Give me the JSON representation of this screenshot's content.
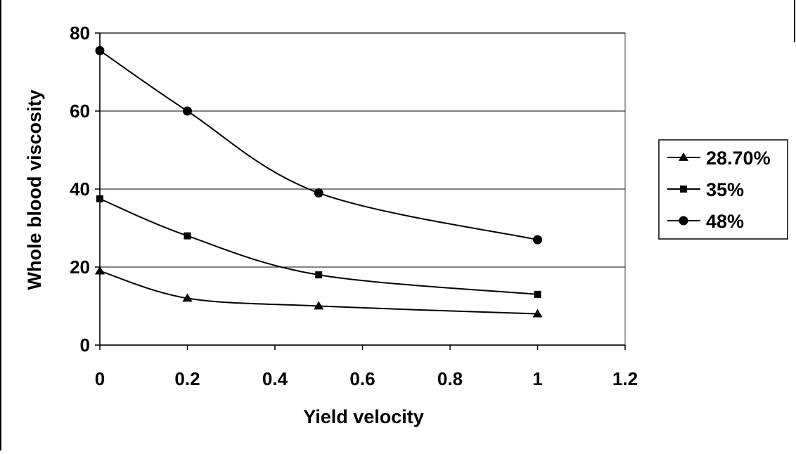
{
  "chart_data": {
    "type": "line",
    "title": "",
    "xlabel": "Yield velocity",
    "ylabel": "Whole blood viscosity",
    "xlim": [
      0,
      1.2
    ],
    "ylim": [
      0,
      80
    ],
    "x_ticks": [
      "0",
      "0.2",
      "0.4",
      "0.6",
      "0.8",
      "1",
      "1.2"
    ],
    "y_ticks": [
      "0",
      "20",
      "40",
      "60",
      "80"
    ],
    "grid": "horizontal major gridlines",
    "legend_position": "right",
    "smooth_lines": true,
    "series": [
      {
        "name": "28.70%",
        "marker": "triangle",
        "color": "#000000",
        "x": [
          0,
          0.2,
          0.5,
          1
        ],
        "y": [
          19,
          12,
          10,
          8
        ]
      },
      {
        "name": "35%",
        "marker": "square",
        "color": "#000000",
        "x": [
          0,
          0.2,
          0.5,
          1
        ],
        "y": [
          37.5,
          28,
          18,
          13
        ]
      },
      {
        "name": "48%",
        "marker": "circle",
        "color": "#000000",
        "x": [
          0,
          0.2,
          0.5,
          1
        ],
        "y": [
          75.5,
          60,
          39,
          27
        ]
      }
    ]
  }
}
